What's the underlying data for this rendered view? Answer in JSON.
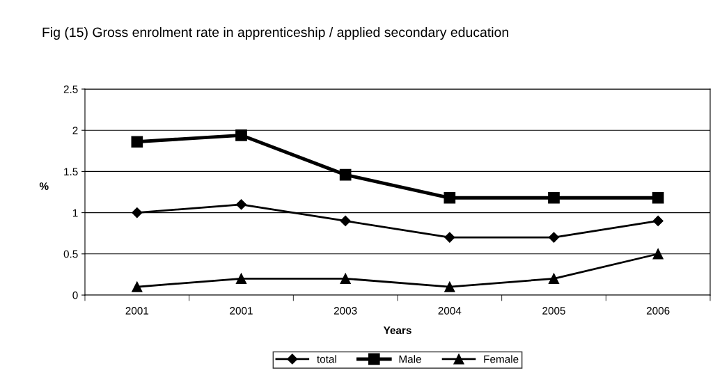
{
  "chart_data": {
    "type": "line",
    "title": "Fig (15) Gross enrolment rate in apprenticeship / applied secondary education",
    "xlabel": "Years",
    "ylabel": "%",
    "categories": [
      "2001",
      "2001",
      "2003",
      "2004",
      "2005",
      "2006"
    ],
    "series": [
      {
        "name": "total",
        "color": "#000000",
        "marker": "diamond",
        "values": [
          1.0,
          1.1,
          0.9,
          0.7,
          0.7,
          0.9
        ]
      },
      {
        "name": "Male",
        "color": "#000000",
        "marker": "square",
        "values": [
          1.86,
          1.94,
          1.46,
          1.18,
          1.18,
          1.18
        ]
      },
      {
        "name": "Female",
        "color": "#000000",
        "marker": "triangle",
        "values": [
          0.1,
          0.2,
          0.2,
          0.1,
          0.2,
          0.5
        ]
      }
    ],
    "ylim": [
      0,
      2.5
    ],
    "yticks": [
      0,
      0.5,
      1,
      1.5,
      2,
      2.5
    ],
    "grid": "y",
    "legend": "bottom",
    "line_style": "solid"
  }
}
